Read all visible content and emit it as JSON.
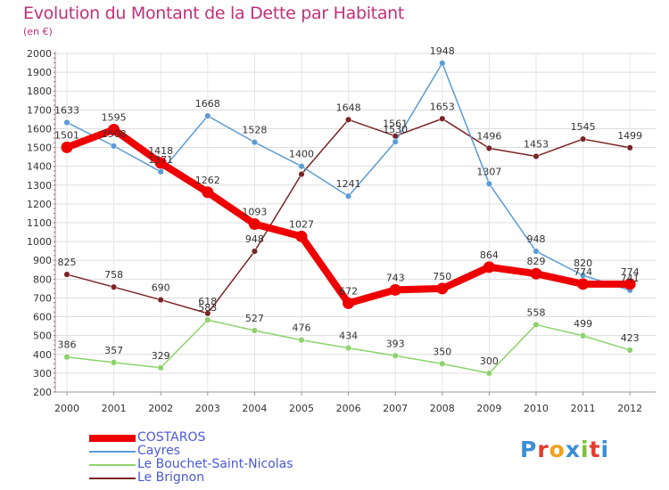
{
  "header": {
    "title": "Evolution du Montant de la Dette par Habitant",
    "subtitle": "(en €)"
  },
  "logo": {
    "text": "Proxiti",
    "letter_colors": [
      "#3a8fd6",
      "#e23b2e",
      "#f0a020",
      "#3a8fd6",
      "#7cbf3a",
      "#e23b2e",
      "#3a8fd6"
    ]
  },
  "chart_data": {
    "type": "line",
    "x": [
      "2000",
      "2001",
      "2002",
      "2003",
      "2004",
      "2005",
      "2006",
      "2007",
      "2008",
      "2009",
      "2010",
      "2011",
      "2012"
    ],
    "ylim": [
      200,
      2000
    ],
    "yticks": [
      200,
      300,
      400,
      500,
      600,
      700,
      800,
      900,
      1000,
      1100,
      1200,
      1300,
      1400,
      1500,
      1600,
      1700,
      1800,
      1900,
      2000
    ],
    "grid": true,
    "legend_position": "bottom-left",
    "series": [
      {
        "name": "Le Brignon",
        "color": "#7a2525",
        "values": [
          825,
          758,
          690,
          618,
          948,
          1358,
          1648,
          1561,
          1653,
          1496,
          1453,
          1545,
          1499
        ],
        "labels": [
          "825",
          "758",
          "690",
          "618",
          "948",
          "",
          "1648",
          "1561",
          "1653",
          "1496",
          "1453",
          "1545",
          "1499"
        ]
      },
      {
        "name": "Le Bouchet-Saint-Nicolas",
        "color": "#8cd26a",
        "values": [
          386,
          357,
          329,
          583,
          527,
          476,
          434,
          393,
          350,
          300,
          558,
          499,
          423
        ],
        "labels": [
          "386",
          "357",
          "329",
          "583",
          "527",
          "476",
          "434",
          "393",
          "350",
          "300",
          "558",
          "499",
          "423"
        ]
      },
      {
        "name": "Cayres",
        "color": "#5b9bd5",
        "values": [
          1633,
          1508,
          1371,
          1668,
          1528,
          1400,
          1241,
          1530,
          1948,
          1307,
          948,
          820,
          741
        ],
        "labels": [
          "1633",
          "1508",
          "1371",
          "1668",
          "1528",
          "1400",
          "1241",
          "1530",
          "1948",
          "1307",
          "948",
          "820",
          "741"
        ]
      },
      {
        "name": "COSTAROS",
        "color": "#ee0000",
        "values": [
          1501,
          1595,
          1418,
          1262,
          1093,
          1027,
          672,
          743,
          750,
          864,
          829,
          774,
          774
        ],
        "labels": [
          "1501",
          "1595",
          "1418",
          "1262",
          "1093",
          "1027",
          "672",
          "743",
          "750",
          "864",
          "829",
          "774",
          "774"
        ]
      }
    ],
    "legend_order": [
      "COSTAROS",
      "Cayres",
      "Le Bouchet-Saint-Nicolas",
      "Le Brignon"
    ]
  }
}
